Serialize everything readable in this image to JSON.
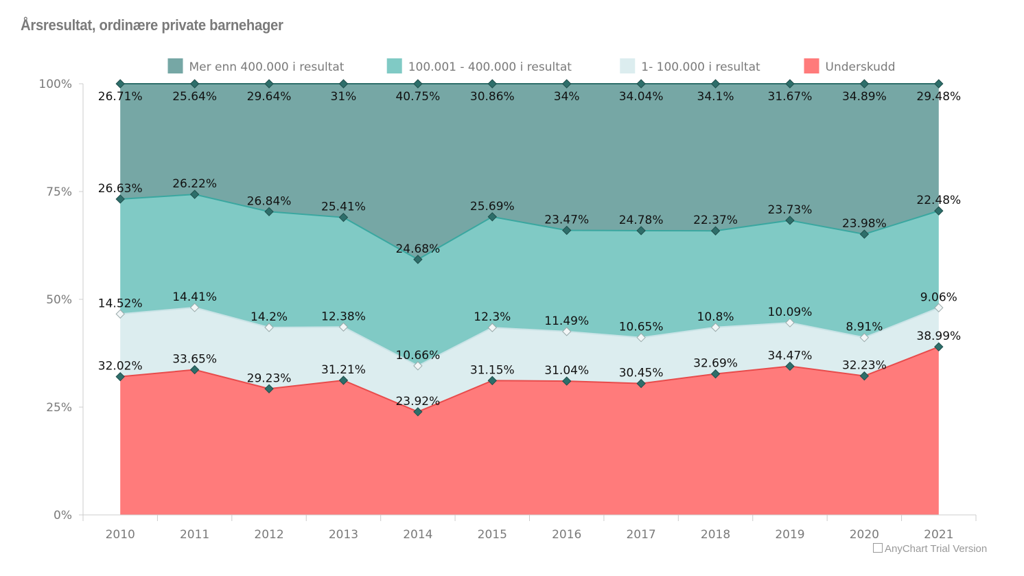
{
  "chart_data": {
    "type": "area",
    "stacking": "percent",
    "title": "Årsresultat, ordinære private barnehager",
    "categories": [
      "2010",
      "2011",
      "2012",
      "2013",
      "2014",
      "2015",
      "2016",
      "2017",
      "2018",
      "2019",
      "2020",
      "2021"
    ],
    "ylim": [
      0,
      100
    ],
    "yticks": [
      "0%",
      "25%",
      "50%",
      "75%",
      "100%"
    ],
    "grid": false,
    "legend_position": "top",
    "series": [
      {
        "name": "Underskudd",
        "color": "#ff7b7b",
        "line": "#e84b4b",
        "marker": "#2e6e6a",
        "values": [
          32.02,
          33.65,
          29.23,
          31.21,
          23.92,
          31.15,
          31.04,
          30.45,
          32.69,
          34.47,
          32.23,
          38.99
        ],
        "labels": [
          "32.02%",
          "33.65%",
          "29.23%",
          "31.21%",
          "23.92%",
          "31.15%",
          "31.04%",
          "30.45%",
          "32.69%",
          "34.47%",
          "32.23%",
          "38.99%"
        ]
      },
      {
        "name": "1- 100.000 i resultat",
        "color": "#dcedef",
        "line": "#c9e3e6",
        "marker": "#f2f6f7",
        "values": [
          14.52,
          14.41,
          14.2,
          12.38,
          10.66,
          12.3,
          11.49,
          10.65,
          10.8,
          10.09,
          8.91,
          9.06
        ],
        "labels": [
          "14.52%",
          "14.41%",
          "14.2%",
          "12.38%",
          "10.66%",
          "12.3%",
          "11.49%",
          "10.65%",
          "10.8%",
          "10.09%",
          "8.91%",
          "9.06%"
        ]
      },
      {
        "name": "100.001 - 400.000 i resultat",
        "color": "#80cac5",
        "line": "#3aa7a0",
        "marker": "#2e6e6a",
        "values": [
          26.63,
          26.22,
          26.84,
          25.41,
          24.68,
          25.69,
          23.47,
          24.78,
          22.37,
          23.73,
          23.98,
          22.48
        ],
        "labels": [
          "26.63%",
          "26.22%",
          "26.84%",
          "25.41%",
          "24.68%",
          "25.69%",
          "23.47%",
          "24.78%",
          "22.37%",
          "23.73%",
          "23.98%",
          "22.48%"
        ]
      },
      {
        "name": "Mer enn 400.000 i resultat",
        "color": "#76a7a5",
        "line": "#2e6e6a",
        "marker": "#2e6e6a",
        "values": [
          26.71,
          25.64,
          29.64,
          31,
          40.75,
          30.86,
          34,
          34.04,
          34.1,
          31.67,
          34.89,
          29.48
        ],
        "labels": [
          "26.71%",
          "25.64%",
          "29.64%",
          "31%",
          "40.75%",
          "30.86%",
          "34%",
          "34.04%",
          "34.1%",
          "31.67%",
          "34.89%",
          "29.48%"
        ]
      }
    ],
    "legend_order": [
      3,
      2,
      1,
      0
    ]
  },
  "watermark": "AnyChart Trial Version"
}
